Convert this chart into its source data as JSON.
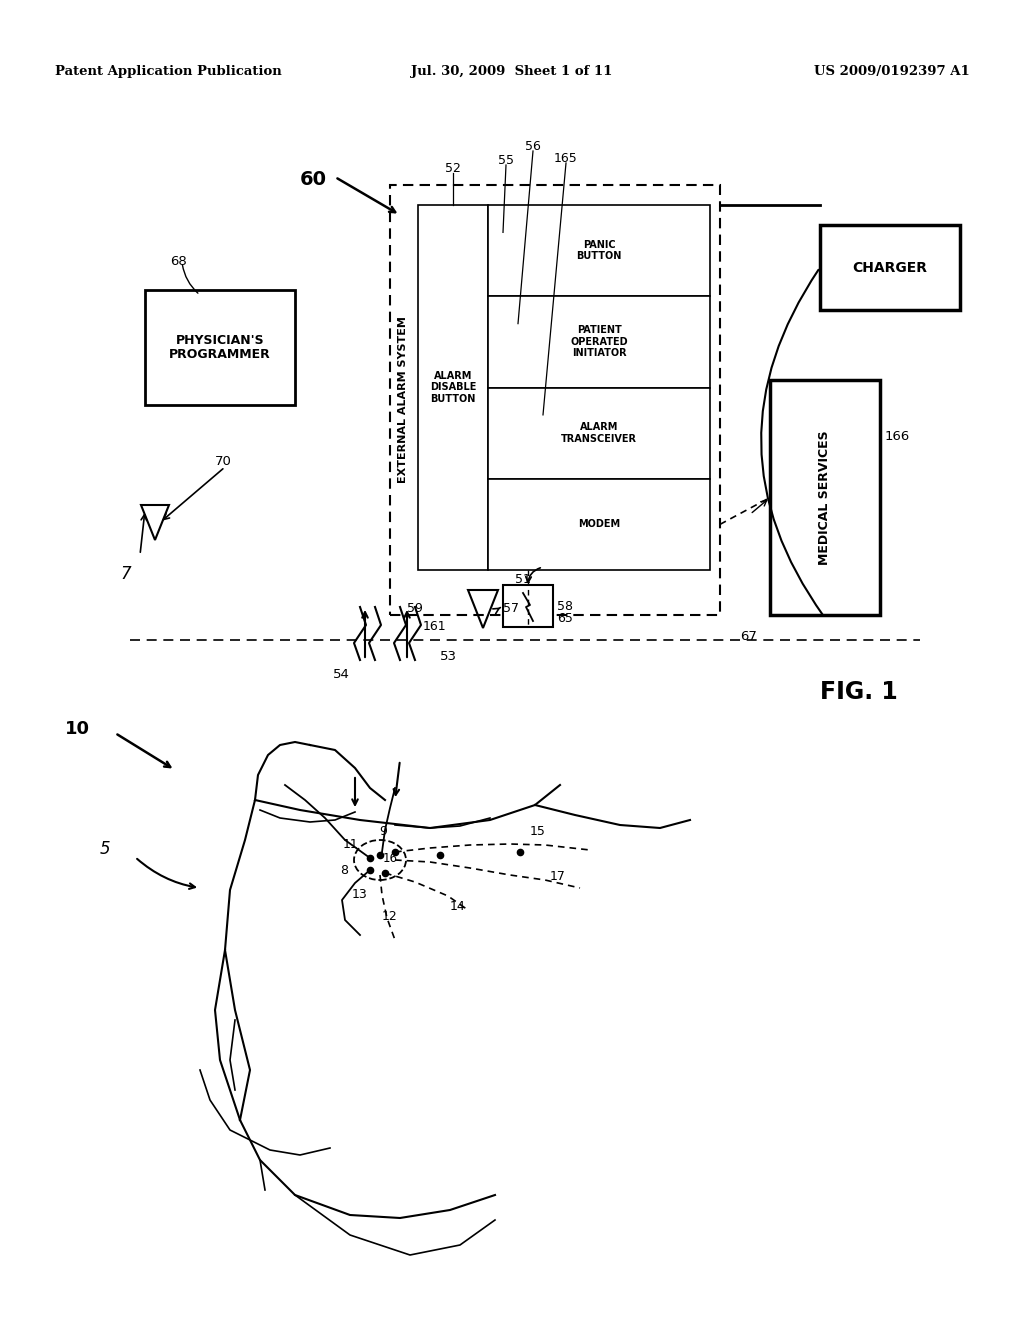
{
  "bg_color": "#ffffff",
  "header_left": "Patent Application Publication",
  "header_mid": "Jul. 30, 2009  Sheet 1 of 11",
  "header_right": "US 2009/0192397 A1",
  "fig_label": "FIG. 1"
}
